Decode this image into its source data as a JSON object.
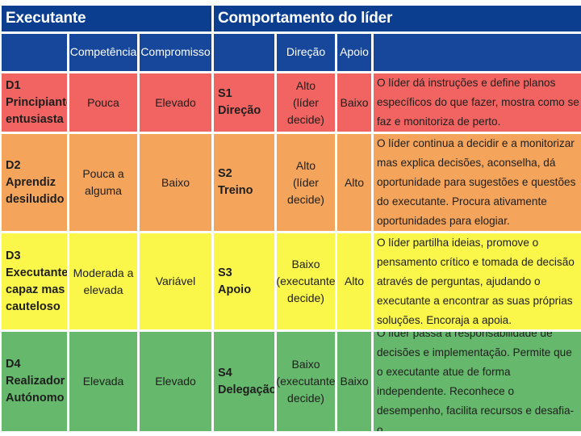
{
  "headers": {
    "executante": "Executante",
    "comportamento": "Comportamento do líder",
    "competencia": "Competência",
    "compromisso": "Compromisso",
    "direcao": "Direção",
    "apoio": "Apoio"
  },
  "rows": [
    {
      "executante": [
        "D1",
        "Principiante",
        "entusiasta"
      ],
      "competencia": [
        "Pouca"
      ],
      "compromisso": "Elevado",
      "estilo": [
        "S1",
        "Direção"
      ],
      "direcao": [
        "Alto",
        "(líder",
        "decide)"
      ],
      "apoio": "Baixo",
      "descricao": "O líder dá instruções e define planos específicos do que fazer, mostra como se faz e monitoriza de perto."
    },
    {
      "executante": [
        "D2",
        "Aprendiz",
        "desiludido"
      ],
      "competencia": [
        "Pouca a",
        "alguma"
      ],
      "compromisso": "Baixo",
      "estilo": [
        "S2",
        "Treino"
      ],
      "direcao": [
        "Alto",
        "(líder",
        "decide)"
      ],
      "apoio": "Alto",
      "descricao": "O líder continua a decidir e a monitorizar mas explica decisões, aconselha, dá oportunidade para sugestões e questões do executante. Procura ativamente oportunidades para elogiar."
    },
    {
      "executante": [
        "D3",
        "Executante",
        "capaz mas",
        "cauteloso"
      ],
      "competencia": [
        "Moderada a",
        "elevada"
      ],
      "compromisso": "Variável",
      "estilo": [
        "S3",
        "Apoio"
      ],
      "direcao": [
        "Baixo",
        "(executante",
        "decide)"
      ],
      "apoio": "Alto",
      "descricao": "O líder partilha ideias, promove o pensamento crítico e tomada de decisão através de perguntas, ajudando o executante a encontrar as suas próprias soluções. Encoraja a apoia."
    },
    {
      "executante": [
        "D4",
        "Realizador",
        "Autónomo"
      ],
      "competencia": [
        "Elevada"
      ],
      "compromisso": "Elevado",
      "estilo": [
        "S4",
        "Delegação"
      ],
      "direcao": [
        "Baixo",
        "(executante",
        "decide)"
      ],
      "apoio": "Baixo",
      "descricao": "O líder passa a responsabilidade de decisões e implementação. Permite que o executante atue de forma independente. Reconhece o desempenho, facilita recursos e desafia-o."
    }
  ],
  "colors": {
    "header": "#0b3e8e",
    "subheader": "#17479a",
    "row1": "#f26461",
    "row2": "#f5a55b",
    "row3": "#fbf74a",
    "row4": "#66b86c"
  }
}
